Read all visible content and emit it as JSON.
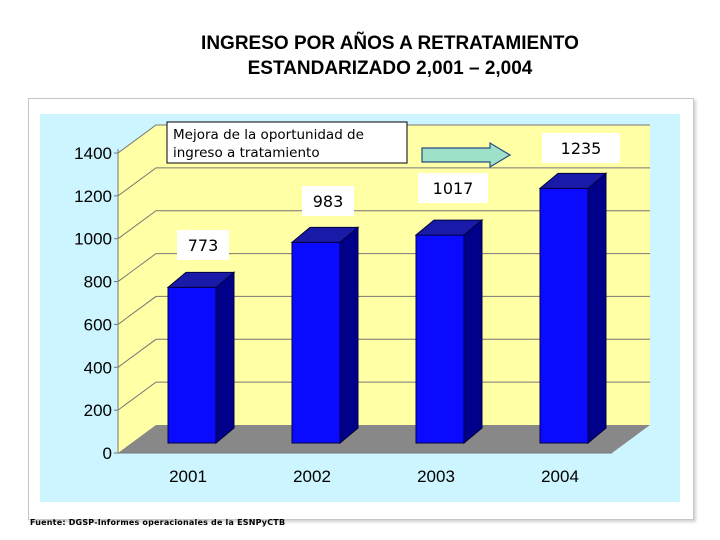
{
  "title": {
    "line1": "INGRESO POR AÑOS A RETRATAMIENTO",
    "line2": "ESTANDARIZADO 2,001 – 2,004"
  },
  "source": "Fuente: DGSP-Informes operacionales de la ESNPyCTB",
  "chart_data": {
    "type": "bar",
    "title": "INGRESO POR AÑOS A RETRATAMIENTO ESTANDARIZADO 2,001 – 2,004",
    "categories": [
      "2001",
      "2002",
      "2003",
      "2004"
    ],
    "values": [
      773,
      983,
      1017,
      1235
    ],
    "value_labels": [
      "773",
      "983",
      "1017",
      "1235"
    ],
    "ylim": [
      0,
      1400
    ],
    "yticks": [
      "0",
      "200",
      "400",
      "600",
      "800",
      "1000",
      "1200",
      "1400"
    ],
    "xlabel": "",
    "ylabel": "",
    "grid": true,
    "annotation": {
      "line1": "Mejora de la oportunidad de",
      "line2": "ingreso a tratamiento"
    },
    "colors": {
      "bar_front": "#0a0aff",
      "bar_side": "#00008a",
      "bar_top": "#1a1aa8",
      "wall": "#ffffa6",
      "floor": "#888888",
      "plot_bg": "#ccf5ff",
      "arrow": "#9fe0c8"
    }
  }
}
